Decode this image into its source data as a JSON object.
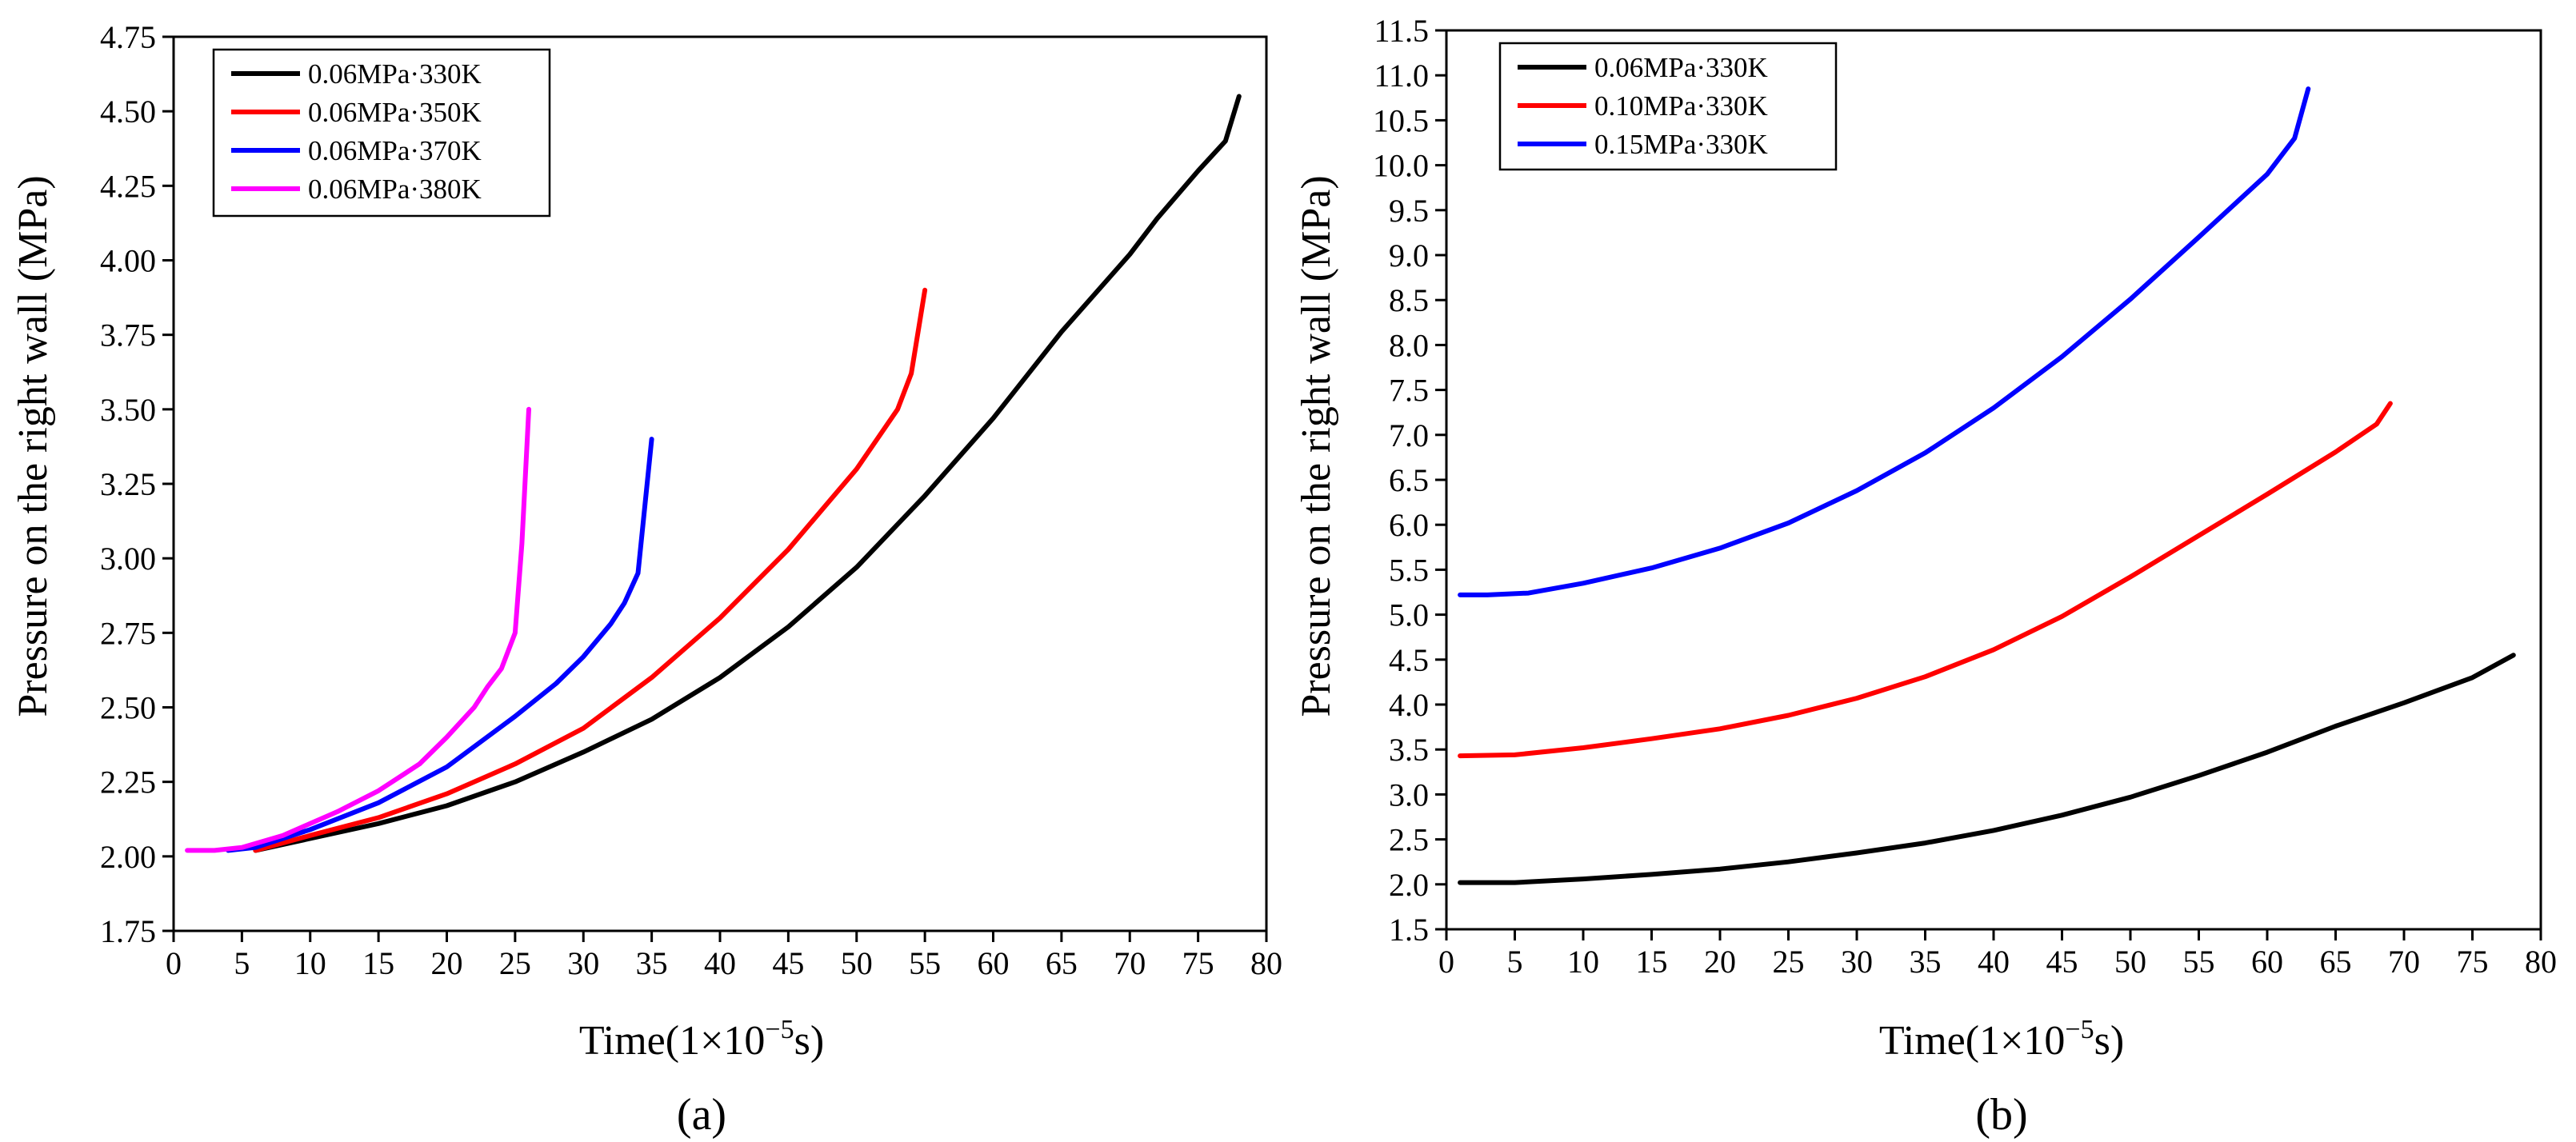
{
  "chart_data": [
    {
      "panel_label": "(a)",
      "type": "line",
      "title": "",
      "xlabel": "Time(1×10⁻⁵s)",
      "ylabel": "Pressure on the right wall (MPa)",
      "xlim": [
        0,
        80
      ],
      "ylim": [
        1.75,
        4.75
      ],
      "xticks": [
        "0",
        "5",
        "10",
        "15",
        "20",
        "25",
        "30",
        "35",
        "40",
        "45",
        "50",
        "55",
        "60",
        "65",
        "70",
        "75",
        "80"
      ],
      "yticks": [
        "1.75",
        "2.00",
        "2.25",
        "2.50",
        "2.75",
        "3.00",
        "3.25",
        "3.50",
        "3.75",
        "4.00",
        "4.25",
        "4.50",
        "4.75"
      ],
      "legend_position": "top-left",
      "series": [
        {
          "name": "0.06MPa·330K",
          "color": "#000000",
          "x": [
            6,
            10,
            15,
            20,
            25,
            30,
            35,
            40,
            45,
            50,
            55,
            60,
            65,
            70,
            72,
            75,
            77,
            78
          ],
          "y": [
            2.02,
            2.06,
            2.11,
            2.17,
            2.25,
            2.35,
            2.46,
            2.6,
            2.77,
            2.97,
            3.21,
            3.47,
            3.76,
            4.02,
            4.14,
            4.3,
            4.4,
            4.55
          ]
        },
        {
          "name": "0.06MPa·350K",
          "color": "#ff0000",
          "x": [
            6,
            10,
            15,
            20,
            25,
            30,
            35,
            40,
            45,
            50,
            53,
            54,
            55
          ],
          "y": [
            2.02,
            2.07,
            2.13,
            2.21,
            2.31,
            2.43,
            2.6,
            2.8,
            3.03,
            3.3,
            3.5,
            3.62,
            3.9
          ]
        },
        {
          "name": "0.06MPa·370K",
          "color": "#0000ff",
          "x": [
            4,
            6,
            10,
            15,
            20,
            25,
            28,
            30,
            32,
            33,
            34,
            35
          ],
          "y": [
            2.02,
            2.03,
            2.09,
            2.18,
            2.3,
            2.47,
            2.58,
            2.67,
            2.78,
            2.85,
            2.95,
            3.4
          ]
        },
        {
          "name": "0.06MPa·380K",
          "color": "#ff00ff",
          "x": [
            1,
            3,
            5,
            8,
            10,
            12,
            15,
            18,
            20,
            22,
            23,
            24,
            25,
            25.5,
            26
          ],
          "y": [
            2.02,
            2.02,
            2.03,
            2.07,
            2.11,
            2.15,
            2.22,
            2.31,
            2.4,
            2.5,
            2.57,
            2.63,
            2.75,
            3.05,
            3.5
          ]
        }
      ]
    },
    {
      "panel_label": "(b)",
      "type": "line",
      "title": "",
      "xlabel": "Time(1×10⁻⁵s)",
      "ylabel": "Pressure on the right wall (MPa)",
      "xlim": [
        0,
        80
      ],
      "ylim": [
        1.5,
        11.5
      ],
      "xticks": [
        "0",
        "5",
        "10",
        "15",
        "20",
        "25",
        "30",
        "35",
        "40",
        "45",
        "50",
        "55",
        "60",
        "65",
        "70",
        "75",
        "80"
      ],
      "yticks": [
        "1.5",
        "2.0",
        "2.5",
        "3.0",
        "3.5",
        "4.0",
        "4.5",
        "5.0",
        "5.5",
        "6.0",
        "6.5",
        "7.0",
        "7.5",
        "8.0",
        "8.5",
        "9.0",
        "9.5",
        "10.0",
        "10.5",
        "11.0",
        "11.5"
      ],
      "legend_position": "top-left",
      "series": [
        {
          "name": "0.06MPa·330K",
          "color": "#000000",
          "x": [
            1,
            5,
            10,
            15,
            20,
            25,
            30,
            35,
            40,
            45,
            50,
            55,
            60,
            65,
            70,
            75,
            78
          ],
          "y": [
            2.02,
            2.02,
            2.06,
            2.11,
            2.17,
            2.25,
            2.35,
            2.46,
            2.6,
            2.77,
            2.97,
            3.21,
            3.47,
            3.76,
            4.02,
            4.3,
            4.55
          ]
        },
        {
          "name": "0.10MPa·330K",
          "color": "#ff0000",
          "x": [
            1,
            5,
            10,
            15,
            20,
            25,
            30,
            35,
            40,
            45,
            50,
            55,
            60,
            65,
            68,
            69
          ],
          "y": [
            3.43,
            3.44,
            3.52,
            3.62,
            3.73,
            3.88,
            4.07,
            4.31,
            4.61,
            4.98,
            5.42,
            5.88,
            6.34,
            6.81,
            7.12,
            7.35
          ]
        },
        {
          "name": "0.15MPa·330K",
          "color": "#0000ff",
          "x": [
            1,
            3,
            6,
            10,
            15,
            20,
            25,
            30,
            35,
            40,
            45,
            50,
            55,
            60,
            62,
            63
          ],
          "y": [
            5.22,
            5.22,
            5.24,
            5.35,
            5.52,
            5.74,
            6.02,
            6.38,
            6.8,
            7.3,
            7.87,
            8.51,
            9.2,
            9.9,
            10.3,
            10.85
          ]
        }
      ]
    }
  ]
}
